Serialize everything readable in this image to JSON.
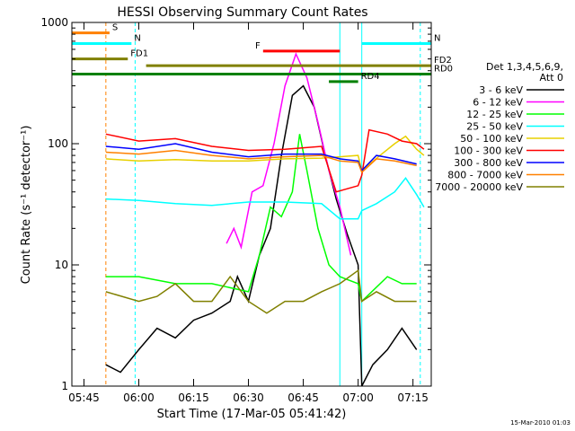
{
  "chart_data": {
    "type": "line",
    "title": "HESSI Observing Summary Count Rates",
    "xlabel": "Start Time (17-Mar-05 05:41:42)",
    "ylabel": "Count Rate (s⁻¹ detector⁻¹)",
    "yscale": "log",
    "ylim": [
      1,
      1000
    ],
    "xlim": [
      "05:41:42",
      "07:20:00"
    ],
    "x_ticks": [
      "05:45",
      "06:00",
      "06:15",
      "06:30",
      "06:45",
      "07:00",
      "07:15"
    ],
    "y_ticks": [
      "1",
      "10",
      "100",
      "1000"
    ],
    "footer": "15-Mar-2010 01:03",
    "legend": {
      "placement": "right",
      "title": [
        "Det 1,3,4,5,6,9,",
        "Att 0"
      ]
    },
    "series": [
      {
        "name": "3 - 6 keV",
        "color": "#000000",
        "points": [
          [
            "05:51",
            1.5
          ],
          [
            "05:55",
            1.3
          ],
          [
            "06:00",
            2
          ],
          [
            "06:05",
            3
          ],
          [
            "06:10",
            2.5
          ],
          [
            "06:15",
            3.5
          ],
          [
            "06:20",
            4
          ],
          [
            "06:25",
            5
          ],
          [
            "06:27",
            8
          ],
          [
            "06:30",
            5
          ],
          [
            "06:33",
            12
          ],
          [
            "06:36",
            20
          ],
          [
            "06:39",
            80
          ],
          [
            "06:42",
            250
          ],
          [
            "06:45",
            300
          ],
          [
            "06:48",
            200
          ],
          [
            "06:51",
            80
          ],
          [
            "06:54",
            35
          ],
          [
            "06:57",
            18
          ],
          [
            "07:00",
            10
          ],
          [
            "07:01",
            1
          ],
          [
            "07:04",
            1.5
          ],
          [
            "07:08",
            2
          ],
          [
            "07:12",
            3
          ],
          [
            "07:16",
            2
          ]
        ]
      },
      {
        "name": "6 - 12 keV",
        "color": "#ff00ff",
        "points": [
          [
            "06:24",
            15
          ],
          [
            "06:26",
            20
          ],
          [
            "06:28",
            14
          ],
          [
            "06:31",
            40
          ],
          [
            "06:34",
            45
          ],
          [
            "06:37",
            100
          ],
          [
            "06:40",
            300
          ],
          [
            "06:43",
            550
          ],
          [
            "06:46",
            350
          ],
          [
            "06:49",
            150
          ],
          [
            "06:52",
            60
          ],
          [
            "06:55",
            30
          ],
          [
            "06:58",
            12
          ]
        ]
      },
      {
        "name": "12 - 25 keV",
        "color": "#00ff00",
        "points": [
          [
            "05:51",
            8
          ],
          [
            "06:00",
            8
          ],
          [
            "06:10",
            7
          ],
          [
            "06:20",
            7
          ],
          [
            "06:30",
            6
          ],
          [
            "06:33",
            12
          ],
          [
            "06:36",
            30
          ],
          [
            "06:39",
            25
          ],
          [
            "06:42",
            40
          ],
          [
            "06:44",
            120
          ],
          [
            "06:46",
            60
          ],
          [
            "06:49",
            20
          ],
          [
            "06:52",
            10
          ],
          [
            "06:55",
            8
          ],
          [
            "07:00",
            7
          ],
          [
            "07:01",
            5
          ],
          [
            "07:08",
            8
          ],
          [
            "07:12",
            7
          ],
          [
            "07:16",
            7
          ]
        ]
      },
      {
        "name": "25 - 50 keV",
        "color": "#00ffff",
        "points": [
          [
            "05:51",
            35
          ],
          [
            "06:00",
            34
          ],
          [
            "06:10",
            32
          ],
          [
            "06:20",
            31
          ],
          [
            "06:30",
            33
          ],
          [
            "06:40",
            33
          ],
          [
            "06:50",
            32
          ],
          [
            "06:55",
            24
          ],
          [
            "07:00",
            24
          ],
          [
            "07:01",
            28
          ],
          [
            "07:05",
            32
          ],
          [
            "07:10",
            40
          ],
          [
            "07:13",
            52
          ],
          [
            "07:16",
            38
          ],
          [
            "07:18",
            30
          ]
        ]
      },
      {
        "name": "50 - 100 keV",
        "color": "#e8d000",
        "points": [
          [
            "05:51",
            75
          ],
          [
            "06:00",
            72
          ],
          [
            "06:10",
            74
          ],
          [
            "06:20",
            72
          ],
          [
            "06:30",
            72
          ],
          [
            "06:40",
            75
          ],
          [
            "06:50",
            76
          ],
          [
            "06:55",
            78
          ],
          [
            "07:00",
            80
          ],
          [
            "07:01",
            60
          ],
          [
            "07:06",
            80
          ],
          [
            "07:10",
            100
          ],
          [
            "07:13",
            115
          ],
          [
            "07:16",
            90
          ],
          [
            "07:18",
            80
          ]
        ]
      },
      {
        "name": "100 - 300 keV",
        "color": "#ff0000",
        "points": [
          [
            "05:51",
            120
          ],
          [
            "06:00",
            105
          ],
          [
            "06:10",
            110
          ],
          [
            "06:20",
            95
          ],
          [
            "06:30",
            88
          ],
          [
            "06:40",
            90
          ],
          [
            "06:50",
            95
          ],
          [
            "06:54",
            40
          ],
          [
            "07:00",
            45
          ],
          [
            "07:01",
            55
          ],
          [
            "07:03",
            130
          ],
          [
            "07:08",
            120
          ],
          [
            "07:12",
            105
          ],
          [
            "07:16",
            100
          ],
          [
            "07:18",
            90
          ]
        ]
      },
      {
        "name": "300 - 800 keV",
        "color": "#0000ff",
        "points": [
          [
            "05:51",
            95
          ],
          [
            "06:00",
            90
          ],
          [
            "06:10",
            100
          ],
          [
            "06:20",
            85
          ],
          [
            "06:30",
            78
          ],
          [
            "06:40",
            82
          ],
          [
            "06:50",
            82
          ],
          [
            "06:55",
            75
          ],
          [
            "07:00",
            72
          ],
          [
            "07:01",
            60
          ],
          [
            "07:05",
            80
          ],
          [
            "07:10",
            75
          ],
          [
            "07:16",
            68
          ]
        ]
      },
      {
        "name": "800 - 7000 keV",
        "color": "#ff8000",
        "points": [
          [
            "05:51",
            85
          ],
          [
            "06:00",
            82
          ],
          [
            "06:10",
            88
          ],
          [
            "06:20",
            80
          ],
          [
            "06:30",
            75
          ],
          [
            "06:40",
            78
          ],
          [
            "06:50",
            80
          ],
          [
            "06:55",
            72
          ],
          [
            "07:00",
            70
          ],
          [
            "07:01",
            58
          ],
          [
            "07:05",
            75
          ],
          [
            "07:10",
            72
          ],
          [
            "07:16",
            66
          ]
        ]
      },
      {
        "name": "7000 - 20000 keV",
        "color": "#808000",
        "points": [
          [
            "05:51",
            6
          ],
          [
            "06:00",
            5
          ],
          [
            "06:05",
            5.5
          ],
          [
            "06:10",
            7
          ],
          [
            "06:15",
            5
          ],
          [
            "06:20",
            5
          ],
          [
            "06:25",
            8
          ],
          [
            "06:30",
            5
          ],
          [
            "06:35",
            4
          ],
          [
            "06:40",
            5
          ],
          [
            "06:45",
            5
          ],
          [
            "06:50",
            6
          ],
          [
            "06:55",
            7
          ],
          [
            "07:00",
            9
          ],
          [
            "07:01",
            5
          ],
          [
            "07:05",
            6
          ],
          [
            "07:10",
            5
          ],
          [
            "07:16",
            5
          ]
        ]
      }
    ],
    "flag_bars": [
      {
        "label": "S",
        "color": "#ff8000",
        "start": "05:41:42",
        "end": "05:52",
        "level": 820
      },
      {
        "label": "N",
        "color": "#00ffff",
        "start": "05:41:42",
        "end": "05:58",
        "level": 670
      },
      {
        "label": "N",
        "color": "#00ffff",
        "start": "07:01",
        "end": "07:20",
        "level": 670
      },
      {
        "label": "F",
        "color": "#ff0000",
        "start": "06:34",
        "end": "06:55",
        "level": 580
      },
      {
        "label": "FD1",
        "color": "#808000",
        "start": "05:41:42",
        "end": "05:57",
        "level": 500
      },
      {
        "label": "FD2",
        "color": "#808000",
        "start": "06:02",
        "end": "07:20",
        "level": 440
      },
      {
        "label": "RD0",
        "color": "#008000",
        "start": "05:41:42",
        "end": "07:20",
        "level": 375
      },
      {
        "label": "RD4",
        "color": "#008000",
        "start": "06:52",
        "end": "07:00",
        "level": 325
      }
    ],
    "vertical_lines": [
      {
        "time": "05:51",
        "color": "#ff8000",
        "dashed": true
      },
      {
        "time": "05:59",
        "color": "#00ffff",
        "dashed": true
      },
      {
        "time": "06:55",
        "color": "#00ffff",
        "dashed": false
      },
      {
        "time": "07:01",
        "color": "#00ffff",
        "dashed": false
      },
      {
        "time": "07:17",
        "color": "#00ffff",
        "dashed": true
      }
    ]
  }
}
